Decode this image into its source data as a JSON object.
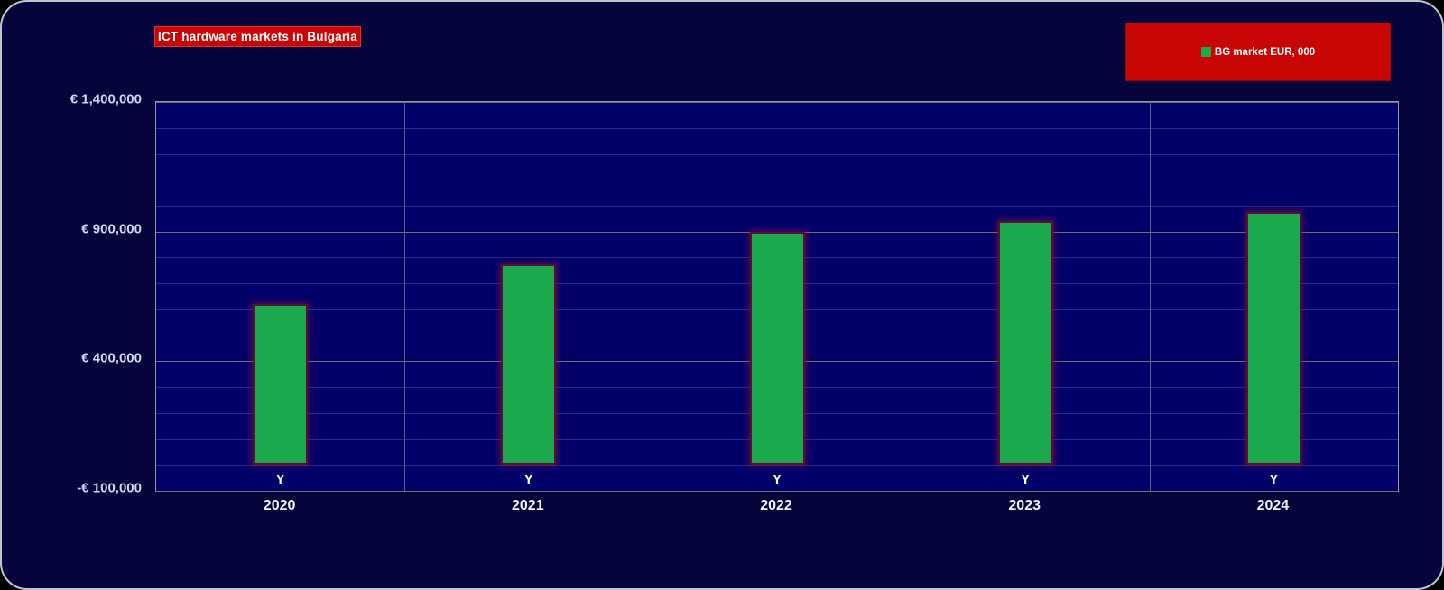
{
  "title": "ICT hardware markets in Bulgaria",
  "legend": {
    "label": "BG market EUR, 000",
    "marker_color": "#1ca94d",
    "position": "top-right"
  },
  "colors": {
    "background": "#05053b",
    "plot_background": "#010169",
    "bar_fill": "#1ca94d",
    "bar_border": "#561031",
    "title_background": "#c90606",
    "legend_background": "#c90606",
    "axis_text": "#ccd7f2",
    "category_text": "#ffffff"
  },
  "chart_data": {
    "type": "bar",
    "title": "ICT hardware markets in Bulgaria",
    "categories": [
      "2020",
      "2021",
      "2022",
      "2023",
      "2024"
    ],
    "series": [
      {
        "name": "BG market EUR, 000",
        "values": [
          620000,
          775000,
          900000,
          940000,
          975000
        ]
      }
    ],
    "bar_point_label": "Y",
    "xlabel": "",
    "ylabel": "",
    "ylim": [
      -100000,
      1400000
    ],
    "ytick_major_step": 500000,
    "ytick_minor_step": 100000,
    "yticks": [
      {
        "value": 1400000,
        "label": "€ 1,400,000"
      },
      {
        "value": 900000,
        "label": "€ 900,000"
      },
      {
        "value": 400000,
        "label": "€ 400,000"
      },
      {
        "value": -100000,
        "label": "-€ 100,000"
      }
    ],
    "grid": true,
    "legend_position": "top-right"
  }
}
